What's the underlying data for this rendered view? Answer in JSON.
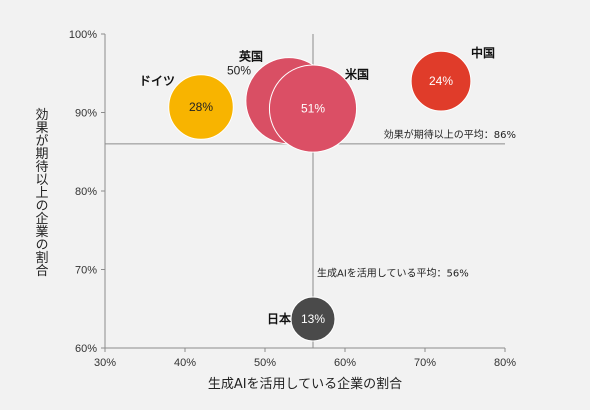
{
  "chart_data": {
    "type": "scatter",
    "subtype": "bubble",
    "xlabel": "生成AIを活用している企業の割合",
    "ylabel": "効果が期待以上の企業の割合",
    "xlim": [
      30,
      80
    ],
    "ylim": [
      60,
      100
    ],
    "x_ticks": [
      "30%",
      "40%",
      "50%",
      "60%",
      "70%",
      "80%"
    ],
    "y_ticks": [
      "60%",
      "70%",
      "80%",
      "90%",
      "100%"
    ],
    "grid": false,
    "reference_lines": {
      "x": {
        "value": 56,
        "label": "生成AIを活用している平均：56%"
      },
      "y": {
        "value": 86,
        "label": "効果が期待以上の平均：86%"
      }
    },
    "points": [
      {
        "name": "英国",
        "x": 53,
        "y": 91.5,
        "bubble_label": "50%",
        "color": "#d94f64"
      },
      {
        "name": "米国",
        "x": 56,
        "y": 90.5,
        "bubble_label": "51%",
        "color": "#db4f65"
      },
      {
        "name": "中国",
        "x": 72,
        "y": 94,
        "bubble_label": "24%",
        "color": "#e03c2a"
      },
      {
        "name": "ドイツ",
        "x": 42,
        "y": 90.7,
        "bubble_label": "28%",
        "color": "#f8b400"
      },
      {
        "name": "日本",
        "x": 56,
        "y": 63.7,
        "bubble_label": "13%",
        "color": "#4a4a4a"
      }
    ]
  }
}
